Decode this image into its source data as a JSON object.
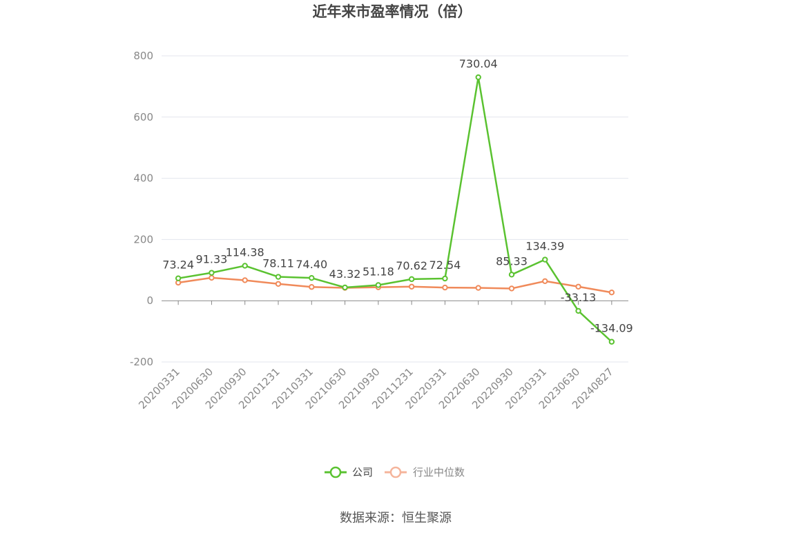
{
  "chart_data": {
    "type": "line",
    "title": "近年来市盈率情况（倍）",
    "categories": [
      "20200331",
      "20200630",
      "20200930",
      "20201231",
      "20210331",
      "20210630",
      "20210930",
      "20211231",
      "20220331",
      "20220630",
      "20220930",
      "20230331",
      "20230630",
      "20240827"
    ],
    "series": [
      {
        "name": "公司",
        "color": "#5ac230",
        "values": [
          73.24,
          91.33,
          114.38,
          78.11,
          74.4,
          43.32,
          51.18,
          70.62,
          72.54,
          730.04,
          85.33,
          134.39,
          -33.13,
          -134.09
        ],
        "labels": [
          "73.24",
          "91.33",
          "114.38",
          "78.11",
          "74.40",
          "43.32",
          "51.18",
          "70.62",
          "72.54",
          "730.04",
          "85.33",
          "134.39",
          "-33.13",
          "-134.09"
        ]
      },
      {
        "name": "行业中位数",
        "color": "#f08a5a",
        "values": [
          59,
          75,
          67,
          55,
          45,
          42,
          44,
          46,
          43,
          42,
          40,
          64,
          46,
          27
        ]
      }
    ],
    "ylim": [
      -200,
      800
    ],
    "yticks": [
      "-200",
      "0",
      "200",
      "400",
      "600",
      "800"
    ],
    "ytick_values": [
      -200,
      0,
      200,
      400,
      600,
      800
    ],
    "grid": true,
    "legend_position": "bottom-center"
  },
  "legend": {
    "company": "公司",
    "industry": "行业中位数",
    "industry_color": "#f5b49b"
  },
  "source": "数据来源：恒生聚源"
}
